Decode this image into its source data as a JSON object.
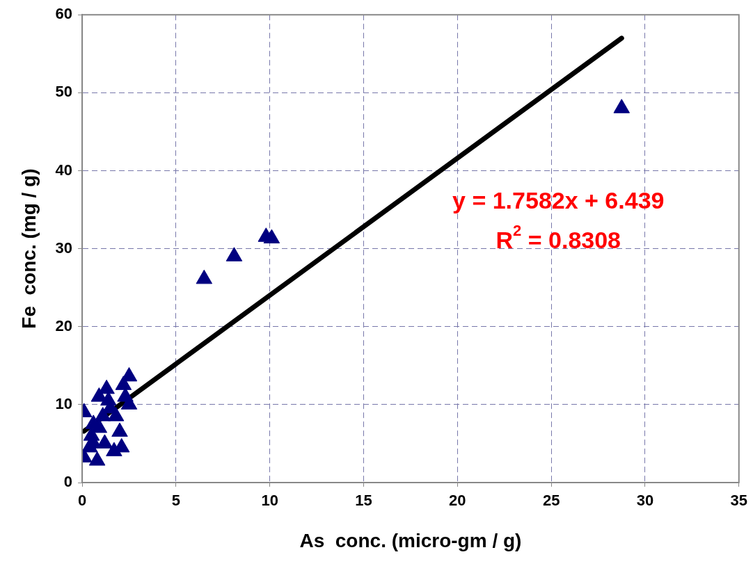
{
  "chart_data": {
    "type": "scatter",
    "xlabel": "As  conc. (micro-gm / g)",
    "ylabel": "Fe  conc. (mg / g)",
    "xlim": [
      0,
      35
    ],
    "xticks": [
      0,
      5,
      10,
      15,
      20,
      25,
      30,
      35
    ],
    "ylim": [
      0,
      60
    ],
    "yticks": [
      0,
      10,
      20,
      30,
      40,
      50,
      60
    ],
    "grid": true,
    "series": [
      {
        "type": "scatter",
        "color": "#000080",
        "marker": "triangle",
        "x": [
          0.1,
          0.1,
          0.3,
          0.4,
          0.5,
          0.6,
          0.6,
          0.7,
          0.8,
          0.9,
          0.9,
          1.0,
          1.1,
          1.2,
          1.3,
          1.4,
          1.5,
          1.7,
          1.8,
          2.0,
          2.1,
          2.2,
          2.3,
          2.5,
          2.5,
          6.5,
          8.1,
          9.8,
          10.1,
          28.75
        ],
        "values": [
          9.0,
          3.2,
          null,
          4.5,
          6.0,
          5.0,
          7.5,
          null,
          2.8,
          7.0,
          11.0,
          null,
          8.5,
          5.0,
          12.0,
          10.5,
          9.5,
          4.0,
          8.5,
          6.5,
          4.5,
          12.5,
          11.0,
          13.6,
          10.0,
          26.1,
          29.0,
          31.5,
          31.3,
          48.0
        ]
      },
      {
        "type": "line",
        "color": "#000000",
        "marker": "none",
        "x": [
          0.1,
          28.75
        ],
        "values": [
          6.6,
          57.0
        ]
      }
    ],
    "annotations": [
      "y = 1.7582x + 6.439",
      "R$^{2}$ = 0.8308"
    ]
  }
}
